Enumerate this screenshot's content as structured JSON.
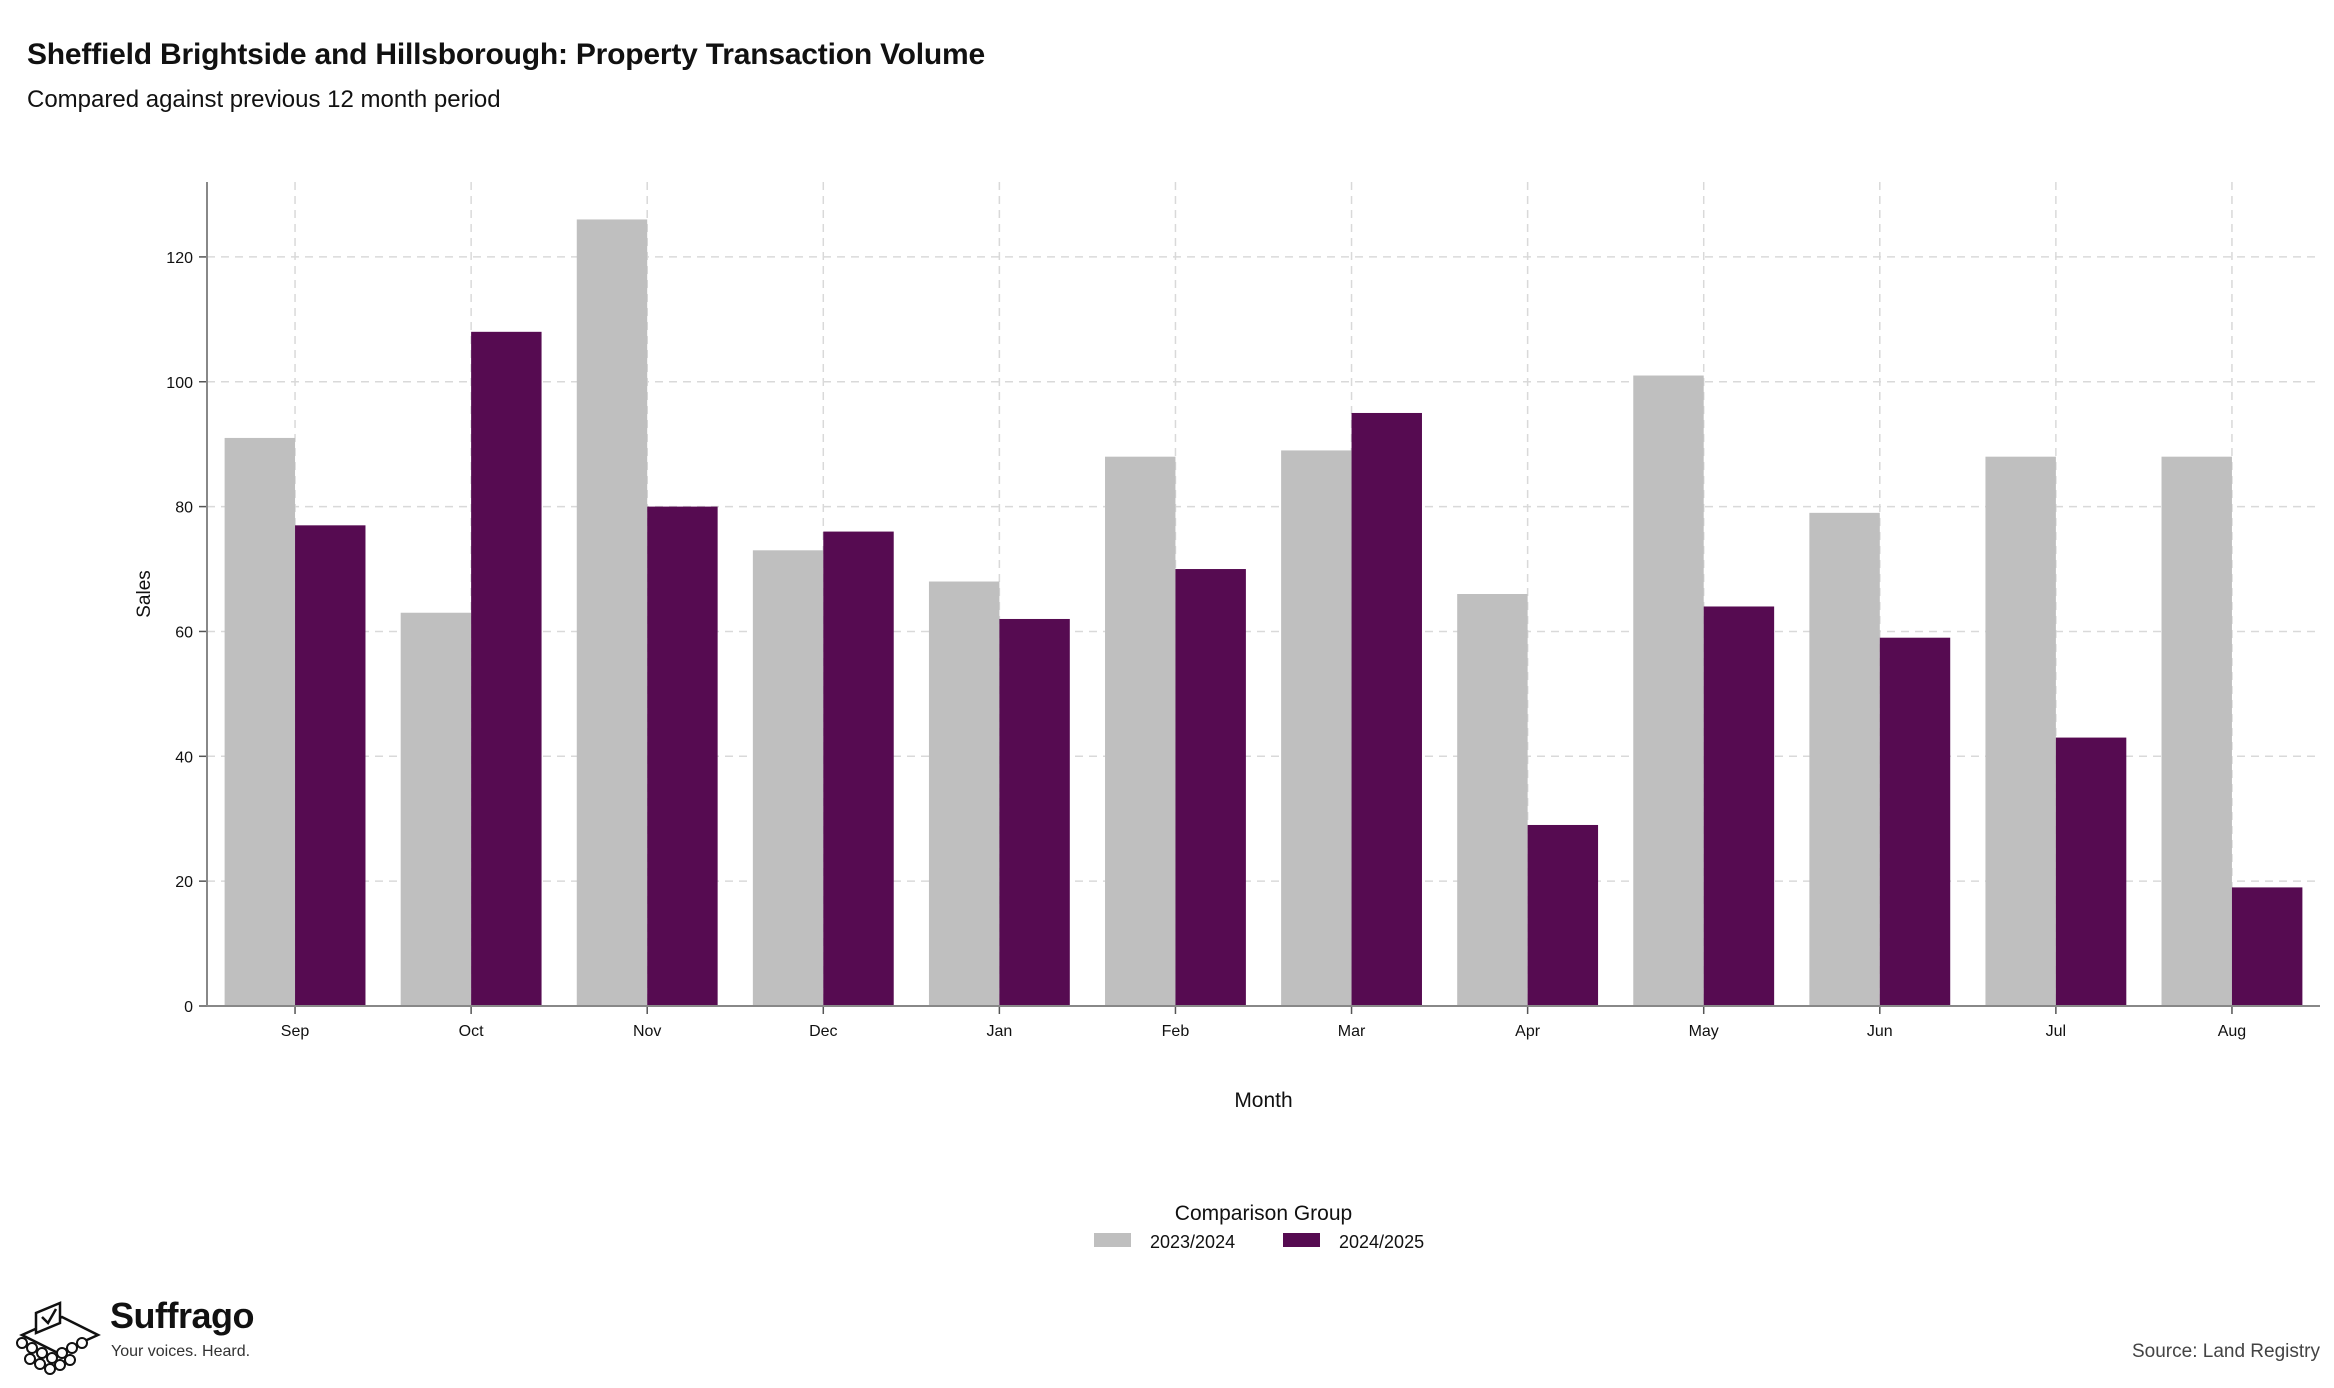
{
  "header": {
    "title": "Sheffield Brightside and Hillsborough: Property Transaction Volume",
    "subtitle": "Compared against previous 12 month period"
  },
  "footer": {
    "brand_name": "Suffrago",
    "brand_tagline": "Your voices. Heard.",
    "source": "Source: Land Registry"
  },
  "icons": {
    "brand_logo": "ballot-box-icon"
  },
  "chart_data": {
    "type": "bar",
    "title": "Sheffield Brightside and Hillsborough: Property Transaction Volume",
    "subtitle": "Compared against previous 12 month period",
    "xlabel": "Month",
    "ylabel": "Sales",
    "categories": [
      "Sep",
      "Oct",
      "Nov",
      "Dec",
      "Jan",
      "Feb",
      "Mar",
      "Apr",
      "May",
      "Jun",
      "Jul",
      "Aug"
    ],
    "series": [
      {
        "name": "2023/2024",
        "color": "#bfbfbf",
        "values": [
          91,
          63,
          126,
          73,
          68,
          88,
          89,
          66,
          101,
          79,
          88,
          88
        ]
      },
      {
        "name": "2024/2025",
        "color": "#560b51",
        "values": [
          77,
          108,
          80,
          76,
          62,
          70,
          95,
          29,
          64,
          59,
          43,
          19
        ]
      }
    ],
    "ylim": [
      0,
      132
    ],
    "yticks": [
      0,
      20,
      40,
      60,
      80,
      100,
      120
    ],
    "grid": true,
    "legend": {
      "title": "Comparison Group",
      "placement": "bottom-center"
    }
  }
}
